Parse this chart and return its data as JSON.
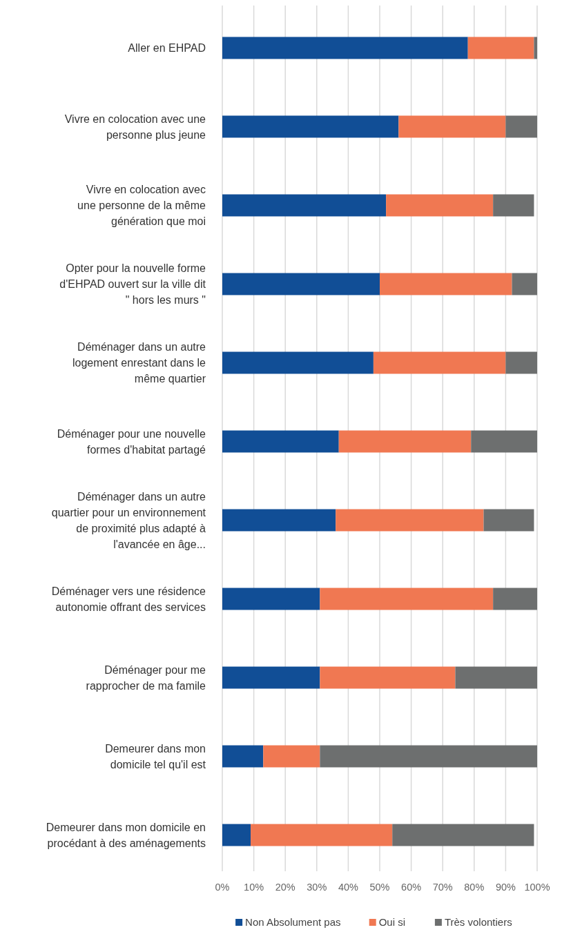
{
  "chart_data": {
    "type": "bar",
    "orientation": "horizontal",
    "stacked": true,
    "categories": [
      "Aller en EHPAD",
      "Vivre en colocation avec une\npersonne plus jeune",
      "Vivre en colocation avec\nune personne de la même\ngénération que moi",
      "Opter pour la nouvelle forme\nd'EHPAD ouvert sur la ville dit\n\" hors les murs \"",
      "Déménager dans un autre\nlogement enrestant dans le\nmême quartier",
      "Déménager pour une nouvelle\nformes d'habitat partagé",
      "Déménager dans un autre\nquartier pour un environnement\nde proximité plus adapté à\nl'avancée en âge...",
      "Déménager vers une résidence\nautonomie offrant des services",
      "Déménager pour me\nrapprocher de ma famile",
      "Demeurer dans mon\ndomicile tel qu'il est",
      "Demeurer dans mon domicile en\nprocédant à des aménagements"
    ],
    "series": [
      {
        "name": "Non Absolument pas",
        "color": "#114e96",
        "values": [
          78,
          56,
          52,
          50,
          48,
          37,
          36,
          31,
          31,
          13,
          9
        ]
      },
      {
        "name": "Oui si",
        "color": "#f07852",
        "values": [
          21,
          34,
          34,
          42,
          42,
          42,
          47,
          55,
          43,
          18,
          45
        ]
      },
      {
        "name": "Très volontiers",
        "color": "#6d6f6f",
        "values": [
          1,
          10,
          13,
          8,
          10,
          21,
          16,
          14,
          26,
          69,
          45
        ]
      }
    ],
    "xlim": [
      0,
      100
    ],
    "xticks": [
      {
        "value": 0,
        "label": "0%"
      },
      {
        "value": 10,
        "label": "10%"
      },
      {
        "value": 20,
        "label": "20%"
      },
      {
        "value": 30,
        "label": "30%"
      },
      {
        "value": 40,
        "label": "40%"
      },
      {
        "value": 50,
        "label": "50%"
      },
      {
        "value": 60,
        "label": "60%"
      },
      {
        "value": 70,
        "label": "70%"
      },
      {
        "value": 80,
        "label": "80%"
      },
      {
        "value": 90,
        "label": "90%"
      },
      {
        "value": 100,
        "label": "100%"
      }
    ],
    "grid": "x",
    "legend": "bottom"
  }
}
